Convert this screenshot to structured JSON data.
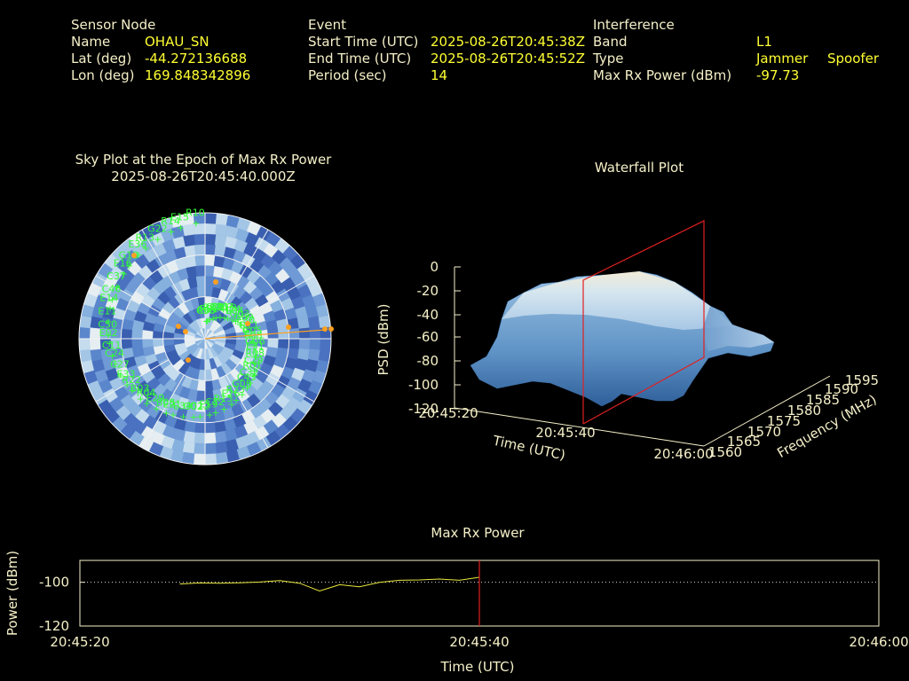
{
  "header": {
    "sensor": {
      "title": "Sensor Node",
      "name_label": "Name",
      "name_value": "OHAU_SN",
      "lat_label": "Lat (deg)",
      "lat_value": "-44.272136688",
      "lon_label": "Lon (deg)",
      "lon_value": "169.848342896"
    },
    "event": {
      "title": "Event",
      "start_label": "Start Time (UTC)",
      "start_value": "2025-08-26T20:45:38Z",
      "end_label": "End Time (UTC)",
      "end_value": "2025-08-26T20:45:52Z",
      "period_label": "Period (sec)",
      "period_value": "14"
    },
    "interference": {
      "title": "Interference",
      "band_label": "Band",
      "band_value": "L1",
      "type_label": "Type",
      "type_value_1": "Jammer",
      "type_value_2": "Spoofer",
      "power_label": "Max Rx Power (dBm)",
      "power_value": "-97.73"
    }
  },
  "skyplot": {
    "title_line1": "Sky Plot at the Epoch of Max Rx Power",
    "title_line2": "2025-08-26T20:45:40.000Z",
    "satellites": [
      "C30",
      "C43",
      "C50",
      "E04",
      "G02",
      "R13",
      "E31",
      "E33",
      "C09",
      "E26",
      "C46",
      "E30",
      "B08",
      "E15",
      "R01",
      "C11",
      "C19",
      "E19",
      "G13",
      "E08",
      "B03",
      "R21",
      "G08",
      "E11",
      "G03",
      "E34",
      "G22",
      "R08",
      "C27",
      "C31",
      "R15",
      "C37",
      "R11",
      "E29",
      "R10",
      "C32",
      "E02",
      "R24",
      "G12",
      "E36",
      "G06",
      "R22",
      "R17",
      "R23",
      "E14",
      "G09",
      "E21",
      "R14",
      "C29",
      "C24",
      "C07",
      "C22",
      "E16",
      "G05",
      "R04",
      "R05"
    ]
  },
  "waterfall": {
    "title": "Waterfall Plot",
    "psd_ticks": [
      "0",
      "-20",
      "-40",
      "-60",
      "-80",
      "-100",
      "-120"
    ],
    "psd_label": "PSD (dBm)",
    "time_ticks": [
      "20:45:20",
      "20:45:40",
      "20:46:00"
    ],
    "time_label": "Time (UTC)",
    "freq_ticks": [
      "1560",
      "1565",
      "1570",
      "1575",
      "1580",
      "1585",
      "1590",
      "1595"
    ],
    "freq_label": "Frequency (MHz)"
  },
  "chart_data": {
    "type": "line",
    "title": "Max Rx Power",
    "xlabel": "Time (UTC)",
    "ylabel": "Power (dBm)",
    "x_ticks": [
      "20:45:20",
      "20:45:40",
      "20:46:00"
    ],
    "y_ticks": [
      "-100",
      "-120"
    ],
    "xlim": [
      "20:45:20",
      "20:46:00"
    ],
    "ylim": [
      -120,
      -90
    ],
    "reference_line": -100,
    "marker_time": "20:45:40",
    "series": [
      {
        "color": "#e8e840",
        "x": [
          "20:45:25",
          "20:45:26",
          "20:45:27",
          "20:45:28",
          "20:45:29",
          "20:45:30",
          "20:45:31",
          "20:45:32",
          "20:45:33",
          "20:45:34",
          "20:45:35",
          "20:45:36",
          "20:45:37",
          "20:45:38",
          "20:45:39",
          "20:45:40"
        ],
        "y": [
          -100.8,
          -100.3,
          -100.4,
          -100.2,
          -99.9,
          -99.2,
          -100.4,
          -104.0,
          -101.1,
          -102.1,
          -100.0,
          -99.1,
          -98.9,
          -98.5,
          -99.1,
          -97.7
        ]
      }
    ]
  },
  "colors": {
    "text": "#f5f0c8",
    "value": "#ffff33",
    "satellite": "#33ff33",
    "marker": "#ff2020",
    "orange": "#ffa020"
  }
}
